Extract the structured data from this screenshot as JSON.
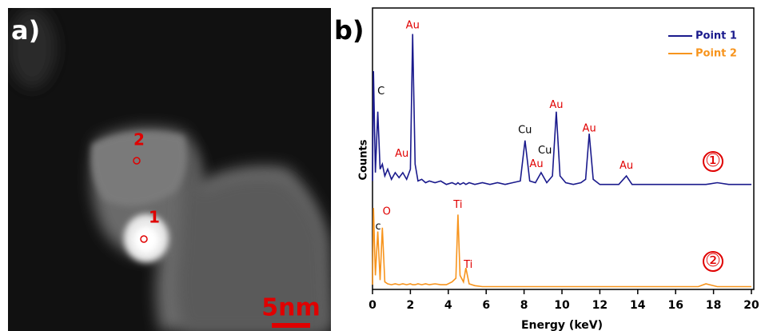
{
  "image": {
    "panel_label": "a)",
    "point_labels": [
      "2",
      "1"
    ],
    "scale_bar": "5nm"
  },
  "chart_data": {
    "type": "line",
    "panel_label": "b)",
    "xlabel": "Energy (keV)",
    "ylabel": "Counts",
    "xlim": [
      0,
      20
    ],
    "xticks": [
      0,
      2,
      4,
      6,
      8,
      10,
      12,
      14,
      16,
      18,
      20
    ],
    "x": [
      0,
      0.05,
      0.15,
      0.28,
      0.4,
      0.52,
      0.65,
      0.8,
      1.0,
      1.2,
      1.4,
      1.6,
      1.8,
      2.0,
      2.12,
      2.25,
      2.4,
      2.6,
      2.8,
      3.0,
      3.3,
      3.6,
      3.9,
      4.2,
      4.4,
      4.51,
      4.62,
      4.8,
      4.93,
      5.1,
      5.4,
      5.8,
      6.2,
      6.6,
      7.0,
      7.4,
      7.8,
      8.05,
      8.3,
      8.6,
      8.9,
      9.2,
      9.5,
      9.7,
      9.9,
      10.2,
      10.6,
      11.0,
      11.25,
      11.44,
      11.65,
      12.0,
      12.5,
      13.0,
      13.4,
      13.7,
      14.2,
      14.8,
      15.4,
      16.0,
      16.6,
      17.2,
      17.6,
      18.2,
      18.8,
      19.4,
      20.0
    ],
    "legend": "upper right",
    "series": [
      {
        "name": "Point 1",
        "color": "#1a1a8c",
        "marker_label": "①",
        "ylim": [
          0,
          105
        ],
        "values": [
          5,
          70,
          10,
          46,
          12,
          15,
          8,
          12,
          6,
          10,
          7,
          10,
          6,
          12,
          92,
          15,
          5,
          6,
          4,
          5,
          4,
          5,
          3,
          4,
          3,
          4,
          3,
          4,
          3,
          4,
          3,
          4,
          3,
          4,
          3,
          4,
          5,
          29,
          5,
          4,
          10,
          4,
          8,
          46,
          8,
          4,
          3,
          4,
          6,
          33,
          6,
          3,
          3,
          3,
          8,
          3,
          3,
          3,
          3,
          3,
          3,
          3,
          3,
          4,
          3,
          3,
          3
        ],
        "annotations": [
          {
            "text": "C",
            "x": 0.45,
            "y": 58,
            "color": "#000000"
          },
          {
            "text": "Au",
            "x": 1.55,
            "y": 21,
            "color": "#e00000"
          },
          {
            "text": "Au",
            "x": 2.12,
            "y": 97,
            "color": "#e00000"
          },
          {
            "text": "Cu",
            "x": 8.05,
            "y": 35,
            "color": "#000000"
          },
          {
            "text": "Au",
            "x": 8.65,
            "y": 15,
            "color": "#e00000"
          },
          {
            "text": "Cu",
            "x": 9.1,
            "y": 23,
            "color": "#000000"
          },
          {
            "text": "Au",
            "x": 9.7,
            "y": 50,
            "color": "#e00000"
          },
          {
            "text": "Au",
            "x": 11.44,
            "y": 36,
            "color": "#e00000"
          },
          {
            "text": "Au",
            "x": 13.4,
            "y": 14,
            "color": "#e00000"
          }
        ]
      },
      {
        "name": "Point 2",
        "color": "#f7941d",
        "marker_label": "②",
        "ylim": [
          0,
          100
        ],
        "values": [
          5,
          87,
          15,
          62,
          10,
          66,
          8,
          6,
          5,
          6,
          5,
          6,
          5,
          6,
          5,
          5,
          6,
          5,
          6,
          5,
          6,
          5,
          5,
          8,
          12,
          80,
          15,
          8,
          23,
          6,
          4,
          3,
          3,
          3,
          3,
          3,
          3,
          3,
          3,
          3,
          3,
          3,
          3,
          3,
          3,
          3,
          3,
          3,
          3,
          3,
          3,
          3,
          3,
          3,
          3,
          3,
          3,
          3,
          3,
          3,
          3,
          3,
          6,
          3,
          3,
          3,
          3
        ],
        "annotations": [
          {
            "text": "c",
            "x": 0.3,
            "y": 67,
            "color": "#000000"
          },
          {
            "text": "O",
            "x": 0.75,
            "y": 83,
            "color": "#e00000"
          },
          {
            "text": "Ti",
            "x": 4.51,
            "y": 90,
            "color": "#e00000"
          },
          {
            "text": "Ti",
            "x": 5.05,
            "y": 26,
            "color": "#e00000"
          }
        ]
      }
    ]
  }
}
